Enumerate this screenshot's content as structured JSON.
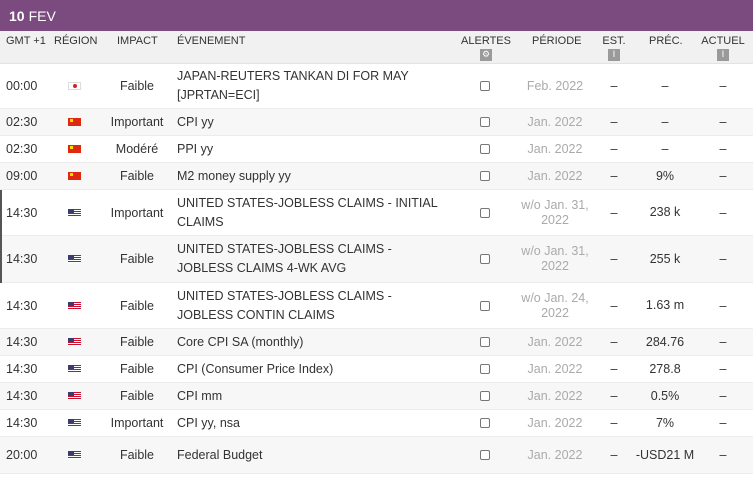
{
  "date": {
    "day": "10",
    "month": "FEV"
  },
  "headers": {
    "time": "GMT +1",
    "region": "RÉGION",
    "impact": "IMPACT",
    "event": "ÉVENEMENT",
    "alerts": "ALERTES",
    "period": "PÉRIODE",
    "est": "EST.",
    "prec": "PRÉC.",
    "actual": "ACTUEL"
  },
  "rows": [
    {
      "time": "00:00",
      "flag": "jp",
      "impact": "Faible",
      "event": "JAPAN-REUTERS TANKAN DI FOR MAY [JPRTAN=ECI]",
      "period": "Feb. 2022",
      "est": "–",
      "prec": "–",
      "actual": "–"
    },
    {
      "time": "02:30",
      "flag": "cn",
      "impact": "Important",
      "event": "CPI yy",
      "period": "Jan. 2022",
      "est": "–",
      "prec": "–",
      "actual": "–"
    },
    {
      "time": "02:30",
      "flag": "cn",
      "impact": "Modéré",
      "event": "PPI yy",
      "period": "Jan. 2022",
      "est": "–",
      "prec": "–",
      "actual": "–"
    },
    {
      "time": "09:00",
      "flag": "cn",
      "impact": "Faible",
      "event": "M2 money supply yy",
      "period": "Jan. 2022",
      "est": "–",
      "prec": "9%",
      "actual": "–"
    },
    {
      "time": "14:30",
      "flag": "us",
      "impact": "Important",
      "event": "UNITED STATES-JOBLESS CLAIMS - INITIAL CLAIMS",
      "period": "w/o Jan. 31, 2022",
      "est": "–",
      "prec": "238 k",
      "actual": "–"
    },
    {
      "time": "14:30",
      "flag": "us",
      "impact": "Faible",
      "event": "UNITED STATES-JOBLESS CLAIMS - JOBLESS CLAIMS 4-WK AVG",
      "period": "w/o Jan. 31, 2022",
      "est": "–",
      "prec": "255 k",
      "actual": "–"
    },
    {
      "time": "14:30",
      "flag": "us",
      "impact": "Faible",
      "event": "UNITED STATES-JOBLESS CLAIMS - JOBLESS CONTIN CLAIMS",
      "period": "w/o Jan. 24, 2022",
      "est": "–",
      "prec": "1.63 m",
      "actual": "–"
    },
    {
      "time": "14:30",
      "flag": "us",
      "impact": "Faible",
      "event": "Core CPI SA (monthly)",
      "period": "Jan. 2022",
      "est": "–",
      "prec": "284.76",
      "actual": "–"
    },
    {
      "time": "14:30",
      "flag": "us",
      "impact": "Faible",
      "event": "CPI (Consumer Price Index)",
      "period": "Jan. 2022",
      "est": "–",
      "prec": "278.8",
      "actual": "–"
    },
    {
      "time": "14:30",
      "flag": "us",
      "impact": "Faible",
      "event": "CPI mm",
      "period": "Jan. 2022",
      "est": "–",
      "prec": "0.5%",
      "actual": "–"
    },
    {
      "time": "14:30",
      "flag": "us",
      "impact": "Important",
      "event": "CPI yy, nsa",
      "period": "Jan. 2022",
      "est": "–",
      "prec": "7%",
      "actual": "–"
    },
    {
      "time": "20:00",
      "flag": "us",
      "impact": "Faible",
      "event": "Federal Budget",
      "period": "Jan. 2022",
      "est": "–",
      "prec": "-USD21 M",
      "actual": "–"
    }
  ]
}
